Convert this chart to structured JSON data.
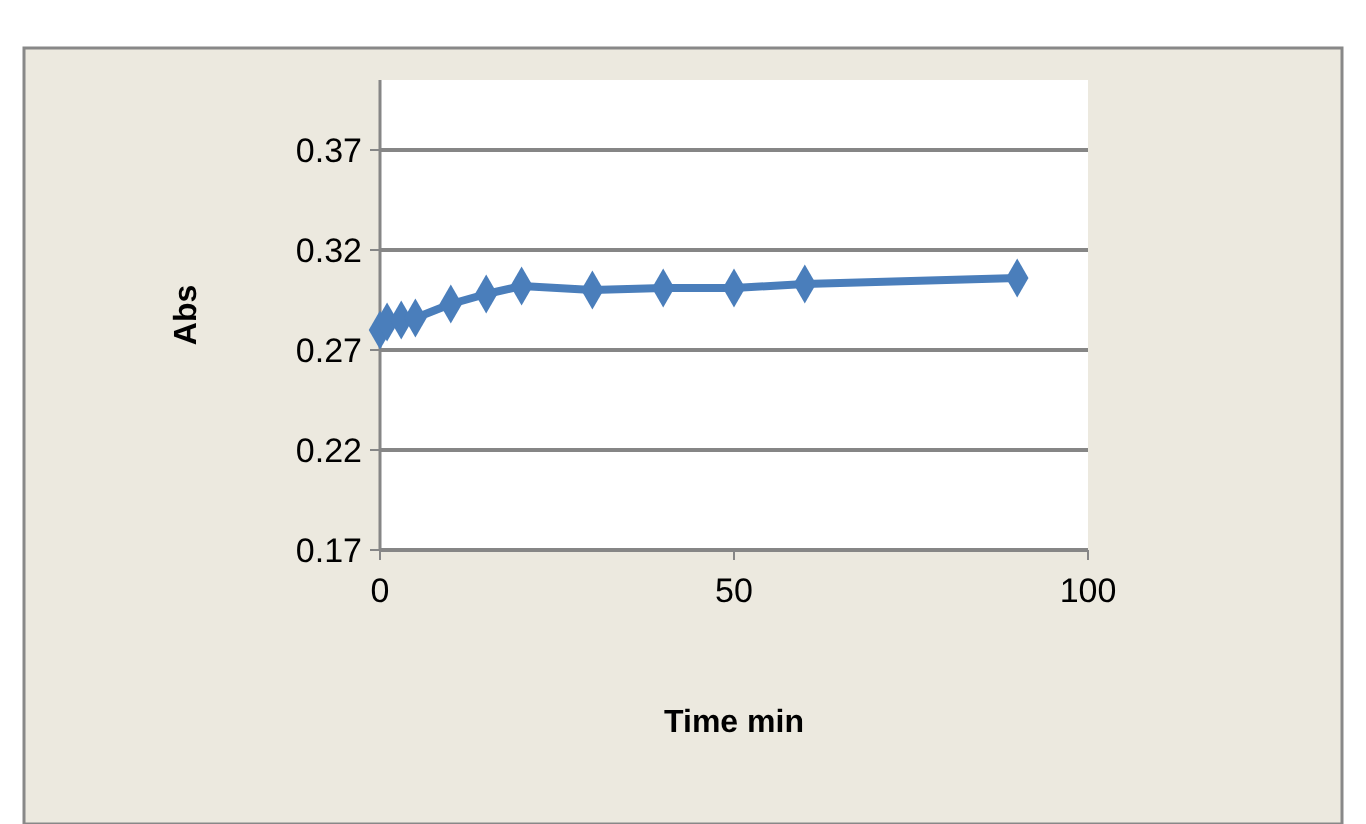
{
  "chart_data": {
    "type": "line",
    "xlabel": "Time min",
    "ylabel": "Abs",
    "x": [
      0,
      1,
      3,
      5,
      10,
      15,
      20,
      30,
      40,
      50,
      60,
      90
    ],
    "series": [
      {
        "color": "#4a7ebb",
        "values": [
          0.28,
          0.284,
          0.285,
          0.286,
          0.293,
          0.298,
          0.302,
          0.3,
          0.301,
          0.301,
          0.303,
          0.306
        ]
      }
    ],
    "xlim": [
      0,
      100
    ],
    "xticks": [
      0,
      50,
      100
    ],
    "ylim": [
      0.17,
      0.405
    ],
    "yticks": [
      0.17,
      0.22,
      0.27,
      0.32,
      0.37
    ],
    "grid": "y",
    "marker": "diamond",
    "line_style": "solid"
  }
}
